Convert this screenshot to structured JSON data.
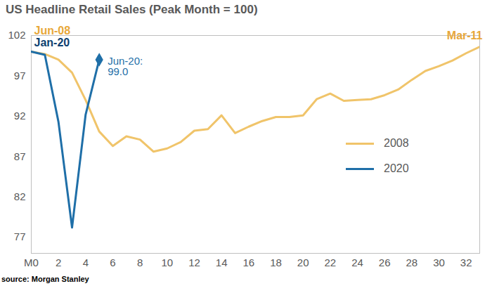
{
  "chart_data": {
    "type": "line",
    "title": "US Headline Retail Sales (Peak Month = 100)",
    "source": "source: Morgan Stanley",
    "xlim": [
      0,
      33
    ],
    "xticks": [
      {
        "value": 0,
        "label": "M0"
      },
      2,
      4,
      6,
      8,
      10,
      12,
      14,
      16,
      18,
      20,
      22,
      24,
      26,
      28,
      30,
      32
    ],
    "ylim": [
      75,
      102
    ],
    "yticks": [
      77,
      82,
      87,
      92,
      97,
      102
    ],
    "grid": false,
    "legend": "right",
    "series": [
      {
        "name": "2008",
        "color": "#f0c46a",
        "start_label": "Jun-08",
        "end_label": "Mar-11",
        "x": [
          0,
          1,
          2,
          3,
          4,
          5,
          6,
          7,
          8,
          9,
          10,
          11,
          12,
          13,
          14,
          15,
          16,
          17,
          18,
          19,
          20,
          21,
          22,
          23,
          24,
          25,
          26,
          27,
          28,
          29,
          30,
          31,
          32,
          33
        ],
        "values": [
          100,
          99.7,
          99.0,
          97.4,
          94.0,
          90.1,
          88.3,
          89.5,
          89.1,
          87.6,
          88.0,
          88.8,
          90.2,
          90.4,
          92.1,
          89.9,
          90.7,
          91.4,
          91.9,
          91.9,
          92.1,
          94.1,
          94.8,
          93.9,
          94.0,
          94.1,
          94.6,
          95.3,
          96.5,
          97.6,
          98.2,
          98.9,
          99.8,
          100.6
        ]
      },
      {
        "name": "2020",
        "color": "#1f6fa8",
        "marker": "diamond",
        "start_label": "Jan-20",
        "end_label": "Jun-20:\n99.0",
        "x": [
          0,
          1,
          2,
          3,
          4,
          5
        ],
        "values": [
          100,
          99.6,
          91.3,
          78.2,
          92.2,
          99.0
        ]
      }
    ]
  }
}
